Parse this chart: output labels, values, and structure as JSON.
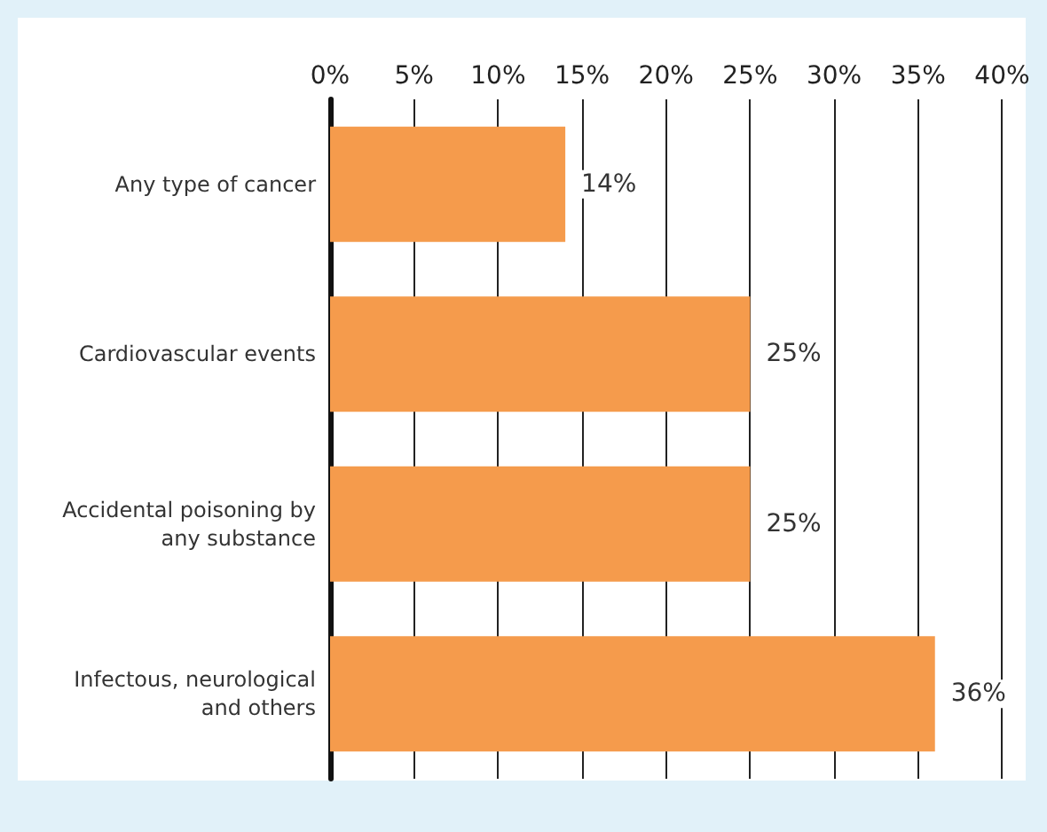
{
  "chart_data": {
    "type": "bar",
    "orientation": "horizontal",
    "categories": [
      "Any type of cancer",
      "Cardiovascular events",
      "Accidental poisoning by\nany substance",
      "Infectous, neurological\nand others"
    ],
    "values": [
      14,
      25,
      25,
      36
    ],
    "color": "#f59b4c",
    "value_labels": [
      "14%",
      "25%",
      "25%",
      "36%"
    ],
    "xlim": [
      0,
      41.4
    ],
    "xticks": [
      {
        "value": 0,
        "label": "0%"
      },
      {
        "value": 5,
        "label": "5%"
      },
      {
        "value": 10,
        "label": "10%"
      },
      {
        "value": 15,
        "label": "15%"
      },
      {
        "value": 20,
        "label": "20%"
      },
      {
        "value": 25,
        "label": "25%"
      },
      {
        "value": 30,
        "label": "30%"
      },
      {
        "value": 35,
        "label": "35%"
      },
      {
        "value": 40,
        "label": "40%"
      }
    ],
    "grid": "x"
  }
}
